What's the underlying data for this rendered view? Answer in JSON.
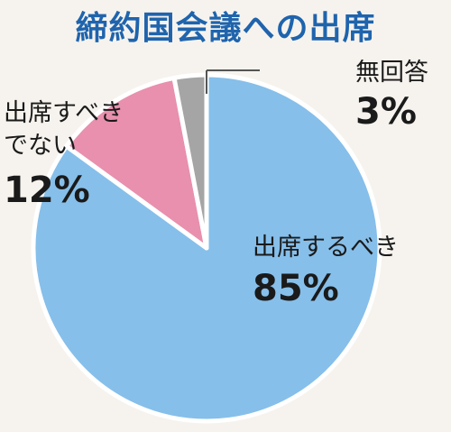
{
  "chart_data": {
    "type": "pie",
    "title": "締約国会議への出席",
    "slices": [
      {
        "label": "出席するべき",
        "pct_text": "85%",
        "value": 85,
        "color": "#86bfea"
      },
      {
        "label_lines": [
          "出席すべき",
          "でない"
        ],
        "label": "出席すべきでない",
        "pct_text": "12%",
        "value": 12,
        "color": "#e890ad"
      },
      {
        "label": "無回答",
        "pct_text": "3%",
        "value": 3,
        "color": "#a5a5a5"
      }
    ]
  },
  "colors": {
    "background": "#f6f3ee",
    "title": "#1f64ad",
    "slice_outline": "#ffffff"
  }
}
